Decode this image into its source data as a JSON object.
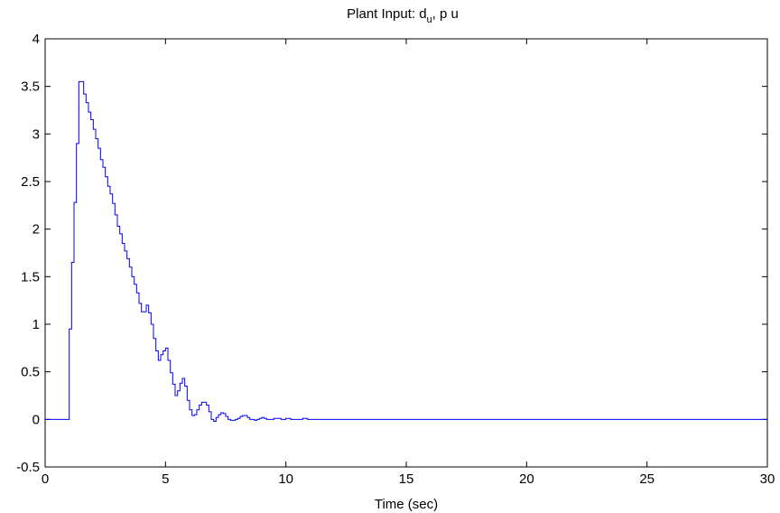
{
  "chart_data": {
    "type": "line",
    "title": {
      "prefix": "Plant Input:  d",
      "subscript": "u",
      "suffix": ", p u"
    },
    "xlabel": "Time (sec)",
    "ylabel": "",
    "xlim": [
      0,
      30
    ],
    "ylim": [
      -0.5,
      4
    ],
    "xticks": [
      "0",
      "5",
      "10",
      "15",
      "20",
      "25",
      "30"
    ],
    "yticks": [
      "-0.5",
      "0",
      "0.5",
      "1",
      "1.5",
      "2",
      "2.5",
      "3",
      "3.5",
      "4"
    ],
    "grid": false,
    "line_style": "staircase",
    "line_color": "#0000ff",
    "series": [
      {
        "x": [
          0,
          1,
          1.1,
          1.2,
          1.3,
          1.4,
          1.5,
          1.6,
          1.7,
          1.8,
          1.9,
          2.0,
          2.1,
          2.2,
          2.3,
          2.4,
          2.5,
          2.6,
          2.7,
          2.8,
          2.9,
          3.0,
          3.1,
          3.2,
          3.3,
          3.4,
          3.5,
          3.6,
          3.7,
          3.8,
          3.9,
          4.0,
          4.1,
          4.2,
          4.3,
          4.4,
          4.5,
          4.6,
          4.7,
          4.8,
          4.9,
          5.0,
          5.1,
          5.2,
          5.3,
          5.4,
          5.5,
          5.6,
          5.7,
          5.8,
          5.9,
          6.0,
          6.1,
          6.2,
          6.3,
          6.4,
          6.5,
          6.6,
          6.7,
          6.8,
          6.9,
          7.0,
          7.1,
          7.2,
          7.3,
          7.4,
          7.5,
          7.6,
          7.7,
          7.8,
          7.9,
          8.0,
          8.1,
          8.2,
          8.3,
          8.4,
          8.5,
          8.6,
          8.7,
          8.8,
          8.9,
          9.0,
          9.1,
          9.2,
          9.3,
          9.4,
          9.5,
          9.6,
          9.7,
          9.8,
          9.9,
          10.0,
          10.1,
          10.2,
          10.3,
          10.4,
          10.5,
          10.6,
          10.7,
          10.8,
          10.9,
          11.0,
          30
        ],
        "y": [
          0,
          0.95,
          1.65,
          2.28,
          2.9,
          3.55,
          3.55,
          3.42,
          3.33,
          3.23,
          3.15,
          3.05,
          2.95,
          2.85,
          2.73,
          2.65,
          2.55,
          2.45,
          2.37,
          2.27,
          2.15,
          2.03,
          1.95,
          1.85,
          1.77,
          1.69,
          1.6,
          1.5,
          1.42,
          1.33,
          1.22,
          1.13,
          1.13,
          1.2,
          1.12,
          1.0,
          0.85,
          0.72,
          0.62,
          0.68,
          0.72,
          0.75,
          0.62,
          0.49,
          0.37,
          0.25,
          0.3,
          0.38,
          0.43,
          0.35,
          0.2,
          0.1,
          0.04,
          0.05,
          0.1,
          0.15,
          0.18,
          0.18,
          0.15,
          0.08,
          0.0,
          -0.02,
          0.02,
          0.05,
          0.07,
          0.06,
          0.03,
          0.0,
          -0.01,
          -0.01,
          0.0,
          0.01,
          0.03,
          0.04,
          0.04,
          0.02,
          0.0,
          0.0,
          -0.01,
          0.0,
          0.01,
          0.02,
          0.01,
          0.0,
          0.0,
          0.0,
          0.01,
          0.01,
          0.01,
          0.0,
          0.0,
          0.01,
          0.01,
          0.0,
          0.0,
          0.0,
          0.0,
          0.0,
          0.01,
          0.01,
          0.0,
          0.0,
          0.0
        ]
      }
    ]
  }
}
